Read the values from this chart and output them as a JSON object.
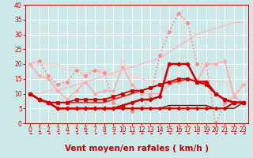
{
  "xlabel": "Vent moyen/en rafales ( km/h )",
  "xlim": [
    -0.5,
    23.5
  ],
  "ylim": [
    0,
    40
  ],
  "yticks": [
    0,
    5,
    10,
    15,
    20,
    25,
    30,
    35,
    40
  ],
  "xticks": [
    0,
    1,
    2,
    3,
    4,
    5,
    6,
    7,
    8,
    9,
    10,
    11,
    12,
    13,
    14,
    15,
    16,
    17,
    18,
    19,
    20,
    21,
    22,
    23
  ],
  "bg_color": "#cce8e8",
  "grid_color": "#aadddd",
  "lines": [
    {
      "x": [
        0,
        1,
        2,
        3,
        4,
        5,
        6,
        7,
        8,
        9,
        10,
        11,
        12,
        13,
        14,
        15,
        16,
        17,
        18,
        19,
        20,
        21,
        22,
        23
      ],
      "y": [
        10,
        8,
        7,
        5,
        5,
        5,
        5,
        5,
        5,
        5,
        6,
        7,
        8,
        8,
        9,
        20,
        20,
        20,
        14,
        14,
        10,
        8,
        7,
        7
      ],
      "color": "#cc0000",
      "lw": 1.8,
      "marker": "P",
      "ms": 3.5,
      "zorder": 5
    },
    {
      "x": [
        0,
        1,
        2,
        3,
        4,
        5,
        6,
        7,
        8,
        9,
        10,
        11,
        12,
        13,
        14,
        15,
        16,
        17,
        18,
        19,
        20,
        21,
        22,
        23
      ],
      "y": [
        10,
        8,
        7,
        5,
        5,
        5,
        5,
        5,
        5,
        5,
        5,
        5,
        5,
        5,
        5,
        5,
        5,
        5,
        5,
        5,
        5,
        5,
        7,
        7
      ],
      "color": "#cc0000",
      "lw": 1.5,
      "marker": "D",
      "ms": 2.5,
      "zorder": 4
    },
    {
      "x": [
        0,
        1,
        2,
        3,
        4,
        5,
        6,
        7,
        8,
        9,
        10,
        11,
        12,
        13,
        14,
        15,
        16,
        17,
        18,
        19,
        20,
        21,
        22,
        23
      ],
      "y": [
        10,
        8,
        7,
        7,
        7,
        7,
        7,
        7,
        7,
        8,
        9,
        10,
        11,
        12,
        13,
        14,
        14,
        15,
        14,
        13,
        10,
        8,
        7,
        7
      ],
      "color": "#dd3333",
      "lw": 1.3,
      "marker": null,
      "ms": 0,
      "zorder": 3
    },
    {
      "x": [
        0,
        1,
        2,
        3,
        4,
        5,
        6,
        7,
        8,
        9,
        10,
        11,
        12,
        13,
        14,
        15,
        16,
        17,
        18,
        19,
        20,
        21,
        22,
        23
      ],
      "y": [
        10,
        8,
        7,
        7,
        7,
        8,
        8,
        8,
        8,
        9,
        10,
        11,
        11,
        12,
        13,
        14,
        15,
        15,
        14,
        13,
        10,
        8,
        7,
        7
      ],
      "color": "#cc0000",
      "lw": 1.3,
      "marker": "s",
      "ms": 2.5,
      "zorder": 3
    },
    {
      "x": [
        0,
        1,
        2,
        3,
        4,
        5,
        6,
        7,
        8,
        9,
        10,
        11,
        12,
        13,
        14,
        15,
        16,
        17,
        18,
        19,
        20,
        21,
        22,
        23
      ],
      "y": [
        10,
        8,
        7,
        5,
        5,
        5,
        5,
        5,
        5,
        5,
        5,
        5,
        5,
        5,
        5,
        6,
        6,
        6,
        6,
        6,
        5,
        5,
        5,
        7
      ],
      "color": "#990000",
      "lw": 1.0,
      "marker": null,
      "ms": 0,
      "zorder": 2
    },
    {
      "x": [
        0,
        1,
        2,
        3,
        4,
        5,
        6,
        7,
        8,
        9,
        10,
        11,
        12,
        13,
        14,
        15,
        16,
        17,
        18,
        19,
        20,
        21,
        22,
        23
      ],
      "y": [
        20,
        21,
        16,
        13,
        14,
        18,
        16,
        18,
        17,
        7,
        5,
        4,
        5,
        9,
        23,
        31,
        37,
        34,
        20,
        20,
        0,
        7,
        9,
        7
      ],
      "color": "#ff8888",
      "lw": 1.2,
      "marker": "D",
      "ms": 2.5,
      "linestyle": "dotted",
      "zorder": 2
    },
    {
      "x": [
        0,
        1,
        2,
        3,
        4,
        5,
        6,
        7,
        8,
        9,
        10,
        11,
        12,
        13,
        14,
        15,
        16,
        17,
        18,
        19,
        20,
        21,
        22,
        23
      ],
      "y": [
        20,
        16,
        15,
        11,
        8,
        11,
        14,
        10,
        11,
        11,
        19,
        13,
        10,
        10,
        10,
        13,
        14,
        15,
        14,
        20,
        20,
        21,
        9,
        13
      ],
      "color": "#ffaaaa",
      "lw": 1.1,
      "marker": "D",
      "ms": 2.5,
      "linestyle": "solid",
      "zorder": 2
    },
    {
      "x": [
        0,
        1,
        2,
        3,
        4,
        5,
        6,
        7,
        8,
        9,
        10,
        11,
        12,
        13,
        14,
        15,
        16,
        17,
        18,
        19,
        20,
        21,
        22,
        23
      ],
      "y": [
        19,
        20,
        20,
        20,
        18,
        19,
        17,
        18,
        18,
        16,
        21,
        16,
        15,
        14,
        14,
        15,
        15,
        15,
        15,
        14,
        14,
        14,
        10,
        13
      ],
      "color": "#ffcccc",
      "lw": 1.0,
      "marker": null,
      "ms": 0,
      "linestyle": "solid",
      "zorder": 1
    },
    {
      "x": [
        0,
        1,
        2,
        3,
        4,
        5,
        6,
        7,
        8,
        9,
        10,
        11,
        12,
        13,
        14,
        15,
        16,
        17,
        18,
        19,
        20,
        21,
        22,
        23
      ],
      "y": [
        10,
        10,
        11,
        11,
        12,
        13,
        14,
        15,
        16,
        17,
        18,
        19,
        20,
        21,
        22,
        24,
        26,
        28,
        30,
        31,
        32,
        33,
        34,
        34
      ],
      "color": "#ffbbbb",
      "lw": 1.0,
      "marker": null,
      "ms": 0,
      "linestyle": "solid",
      "zorder": 1
    }
  ],
  "tick_color": "#cc0000",
  "tick_fontsize": 5.5,
  "xlabel_fontsize": 7.5,
  "xlabel_color": "#cc0000"
}
